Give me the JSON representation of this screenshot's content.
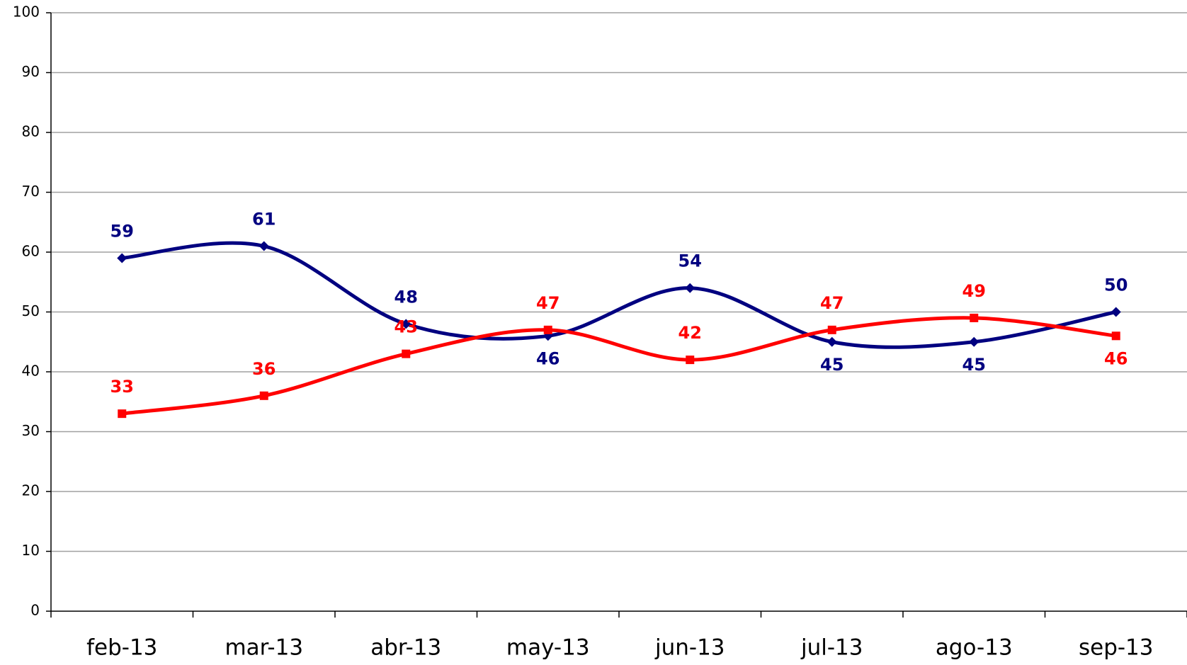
{
  "chart_data": {
    "type": "line",
    "categories": [
      "feb-13",
      "mar-13",
      "abr-13",
      "may-13",
      "jun-13",
      "jul-13",
      "ago-13",
      "sep-13"
    ],
    "series": [
      {
        "color": "#000080",
        "marker": "diamond",
        "values": [
          59,
          61,
          48,
          46,
          54,
          45,
          45,
          50
        ]
      },
      {
        "color": "#ff0000",
        "marker": "square",
        "values": [
          33,
          36,
          43,
          47,
          42,
          47,
          49,
          46
        ]
      }
    ],
    "ylim": [
      0,
      100
    ],
    "yticks": [
      0,
      10,
      20,
      30,
      40,
      50,
      60,
      70,
      80,
      90,
      100
    ],
    "grid": true,
    "smooth": true
  }
}
